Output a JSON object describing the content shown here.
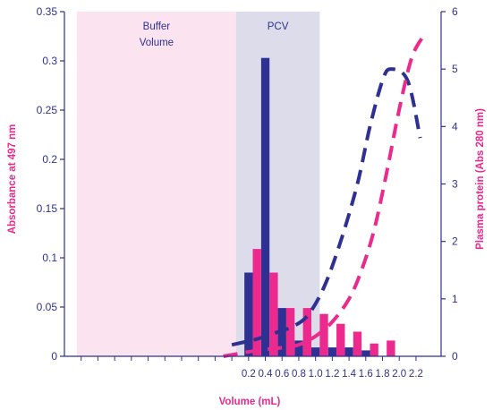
{
  "chart_data": {
    "type": "bar",
    "xlabel": "Volume (mL)",
    "ylabel_left": "Absorbance at 497 nm",
    "ylabel_right": "Plasma protein (Abs 280 nm)",
    "x_tick_labels": [
      "0.2",
      "0.4",
      "0.6",
      "0.8",
      "1.0",
      "1.2",
      "1.4",
      "1.6",
      "1.8",
      "2.0",
      "2.2"
    ],
    "x_tick_values": [
      0.2,
      0.4,
      0.6,
      0.8,
      1.0,
      1.2,
      1.4,
      1.6,
      1.8,
      2.0,
      2.2
    ],
    "x_minor_ticks": [
      -1.8,
      -1.6,
      -1.4,
      -1.2,
      -1.0,
      -0.8,
      -0.6,
      -0.4,
      -0.2,
      0.0
    ],
    "xlim": [
      -2.0,
      2.5
    ],
    "ylim_left": [
      0,
      0.35
    ],
    "yticks_left": [
      "0",
      "0.05",
      "0.1",
      "0.15",
      "0.2",
      "0.25",
      "0.3",
      "0.35"
    ],
    "ylim_right": [
      0,
      6
    ],
    "yticks_right": [
      "0",
      "1",
      "2",
      "3",
      "4",
      "5",
      "6"
    ],
    "regions": [
      {
        "label_lines": [
          "Buffer",
          "Volume"
        ],
        "x_start": -1.85,
        "x_end": 0.05,
        "color": "#fbe3ef"
      },
      {
        "label_lines": [
          "PCV"
        ],
        "x_start": 0.05,
        "x_end": 1.05,
        "color": "#dcdcea"
      }
    ],
    "bar_series": [
      {
        "color": "#2e3192",
        "x": [
          0.2,
          0.4,
          0.6,
          0.8,
          1.0,
          1.2,
          1.4,
          1.6,
          1.8
        ],
        "values": [
          0.085,
          0.303,
          0.049,
          0.016,
          0.009,
          0.009,
          0.009,
          0.006,
          0.0
        ]
      },
      {
        "color": "#ec2a8d",
        "x": [
          0.3,
          0.5,
          0.7,
          0.9,
          1.1,
          1.3,
          1.5,
          1.7,
          1.9
        ],
        "values": [
          0.109,
          0.085,
          0.049,
          0.049,
          0.043,
          0.033,
          0.025,
          0.013,
          0.016
        ]
      }
    ],
    "line_series": [
      {
        "axis": "right",
        "color": "#2e3192",
        "dashed": true,
        "x": [
          0.0,
          0.3,
          0.5,
          0.7,
          0.9,
          1.1,
          1.3,
          1.5,
          1.65,
          1.8,
          1.9,
          2.1,
          2.25
        ],
        "y": [
          0.2,
          0.3,
          0.4,
          0.5,
          0.7,
          1.2,
          2.0,
          3.0,
          4.0,
          4.8,
          5.0,
          4.8,
          3.8
        ]
      },
      {
        "axis": "right",
        "color": "#ec2a8d",
        "dashed": true,
        "x": [
          -0.1,
          0.3,
          0.6,
          0.8,
          1.0,
          1.2,
          1.4,
          1.55,
          1.7,
          1.85,
          2.0,
          2.15,
          2.3
        ],
        "y": [
          0.0,
          0.1,
          0.15,
          0.2,
          0.35,
          0.6,
          1.0,
          1.5,
          2.2,
          3.2,
          4.3,
          5.2,
          5.6
        ]
      }
    ],
    "colors": {
      "navy": "#2e3192",
      "magenta": "#ec2a8d",
      "axis": "#2e3192"
    }
  }
}
